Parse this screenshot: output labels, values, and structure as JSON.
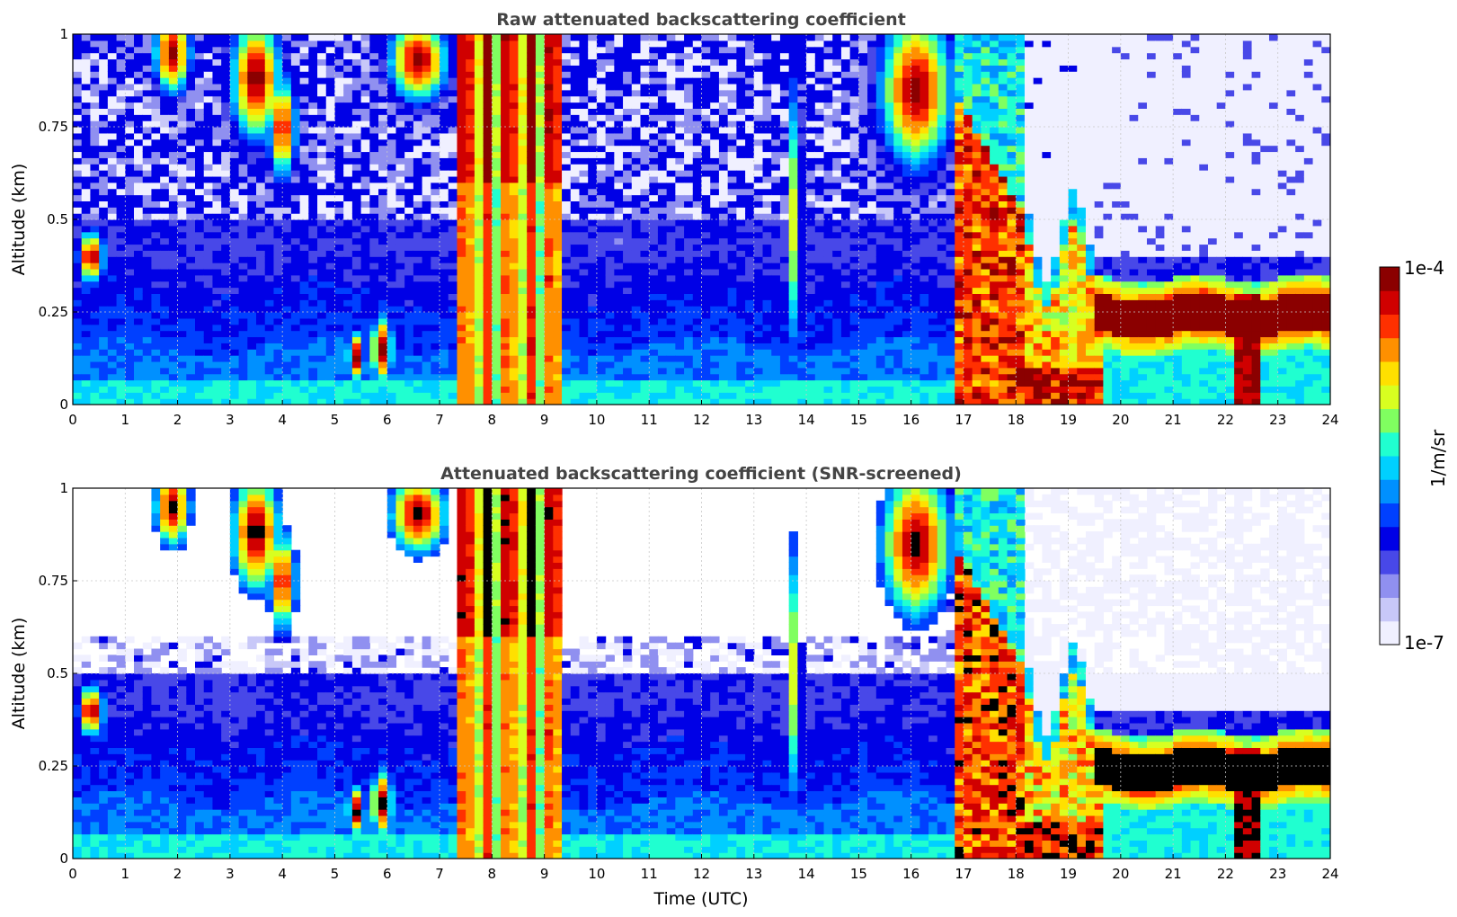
{
  "figure": {
    "colorbar": {
      "label": "1/m/sr",
      "min_label": "1e-7",
      "max_label": "1e-4",
      "scale": "log",
      "colors": [
        "#f0f0ff",
        "#c8c8f8",
        "#9090f0",
        "#4848e8",
        "#0000e6",
        "#0040ff",
        "#0090ff",
        "#00d0ff",
        "#20ffd0",
        "#80ff60",
        "#d8ff20",
        "#ffe000",
        "#ff9000",
        "#ff3000",
        "#d00000",
        "#8b0000"
      ]
    },
    "xlabel": "Time (UTC)",
    "gridline_color": "#c8c8c8",
    "screened_saturation_color": "#000000"
  },
  "chart_data": [
    {
      "type": "heatmap",
      "title": "Raw attenuated backscattering coefficient",
      "xlabel": "",
      "ylabel": "Altitude (km)",
      "xlim": [
        0,
        24
      ],
      "ylim": [
        0,
        1
      ],
      "xticks": [
        0,
        1,
        2,
        3,
        4,
        5,
        6,
        7,
        8,
        9,
        10,
        11,
        12,
        13,
        14,
        15,
        16,
        17,
        18,
        19,
        20,
        21,
        22,
        23,
        24
      ],
      "yticks": [
        0,
        0.25,
        0.5,
        0.75,
        1
      ],
      "ytick_labels": [
        "0",
        "0.25",
        "0.5",
        "0.75",
        "1"
      ],
      "grid": true,
      "features": [
        {
          "name": "noisy background above 0.5 km",
          "time_range": [
            0,
            17.7
          ],
          "altitude_range": [
            0.5,
            1.0
          ],
          "level": "low"
        },
        {
          "name": "boundary layer aerosol",
          "time_range": [
            0,
            17
          ],
          "altitude_range": [
            0,
            0.2
          ],
          "level": "moderate"
        },
        {
          "name": "elevated cloud patches",
          "time_range": [
            1.5,
            4.3
          ],
          "altitude_range": [
            0.7,
            1.0
          ],
          "level": "high"
        },
        {
          "name": "precipitation streaks",
          "time_range": [
            7.5,
            9.2
          ],
          "altitude_range": [
            0,
            1.0
          ],
          "level": "high"
        },
        {
          "name": "fog/low cloud onset",
          "time_range": [
            16.8,
            18
          ],
          "altitude_range": [
            0,
            1.0
          ],
          "level": "high"
        },
        {
          "name": "stratiform cloud layer",
          "time_range": [
            19.5,
            24
          ],
          "altitude_range": [
            0.18,
            0.32
          ],
          "level": "saturated"
        }
      ]
    },
    {
      "type": "heatmap",
      "title": "Attenuated backscattering coefficient (SNR-screened)",
      "xlabel": "Time (UTC)",
      "ylabel": "Altitude (km)",
      "xlim": [
        0,
        24
      ],
      "ylim": [
        0,
        1
      ],
      "xticks": [
        0,
        1,
        2,
        3,
        4,
        5,
        6,
        7,
        8,
        9,
        10,
        11,
        12,
        13,
        14,
        15,
        16,
        17,
        18,
        19,
        20,
        21,
        22,
        23,
        24
      ],
      "yticks": [
        0,
        0.25,
        0.5,
        0.75,
        1
      ],
      "ytick_labels": [
        "0",
        "0.25",
        "0.5",
        "0.75",
        "1"
      ],
      "grid": true,
      "features": [
        {
          "name": "screened-out region (white)",
          "time_range": [
            0,
            16.5
          ],
          "altitude_range": [
            0.6,
            1.0
          ],
          "level": "masked"
        },
        {
          "name": "boundary layer aerosol",
          "time_range": [
            0,
            17
          ],
          "altitude_range": [
            0,
            0.2
          ],
          "level": "moderate"
        },
        {
          "name": "saturated cloud cores (black)",
          "time_range": [
            1.5,
            4.3
          ],
          "altitude_range": [
            0.6,
            1.0
          ],
          "level": "saturated"
        },
        {
          "name": "stratiform cloud layer with black core",
          "time_range": [
            19.5,
            24
          ],
          "altitude_range": [
            0.18,
            0.32
          ],
          "level": "saturated"
        }
      ]
    }
  ]
}
